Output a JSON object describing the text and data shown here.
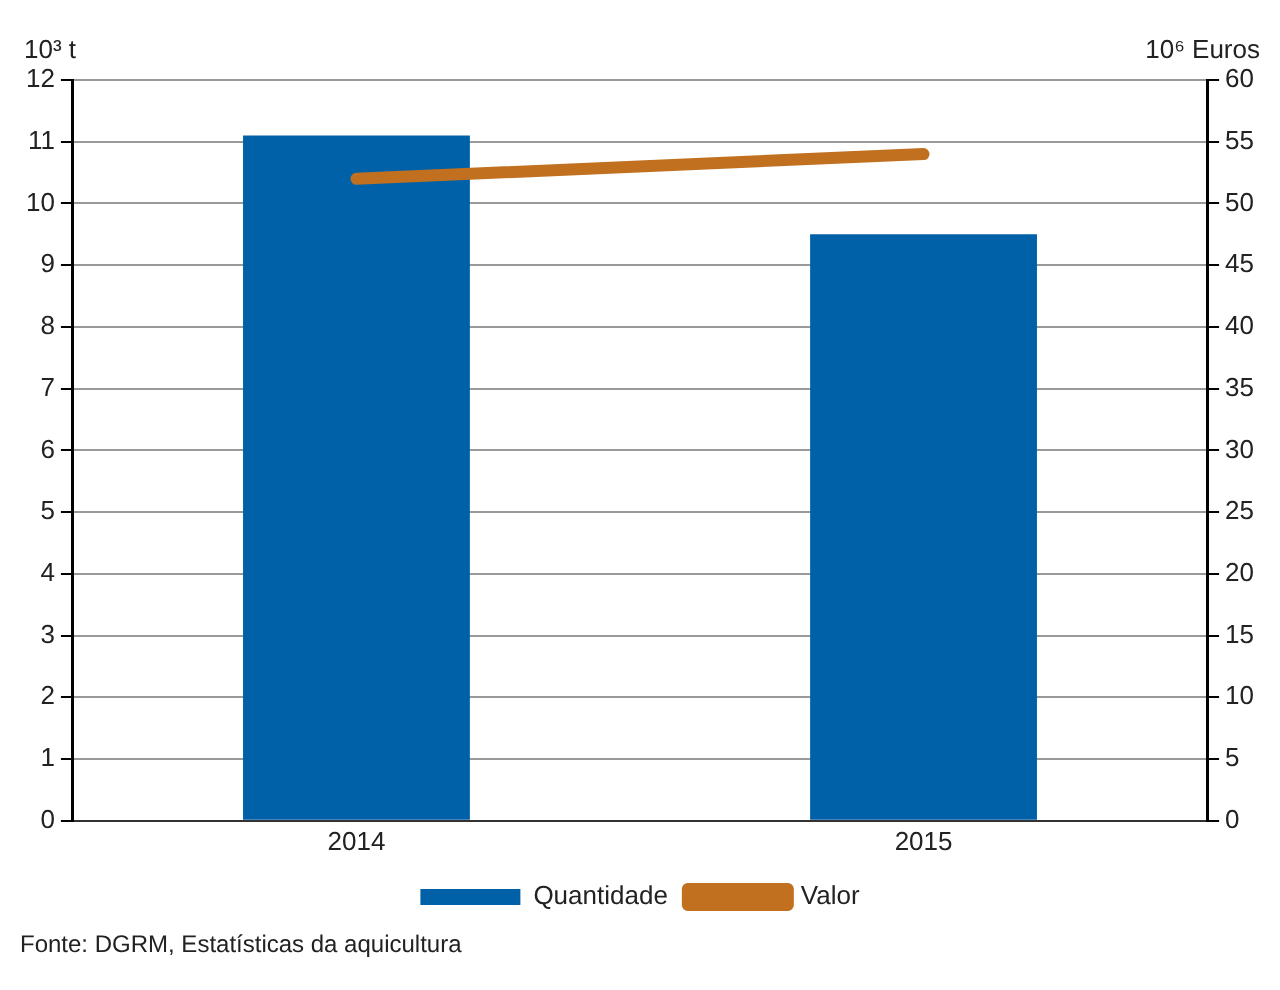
{
  "chart_data": {
    "type": "bar",
    "categories": [
      "2014",
      "2015"
    ],
    "ylabel": "10³ t",
    "y2label": "10⁶ Euros",
    "series": [
      {
        "name": "Quantidade",
        "color": "#0060a8",
        "values": [
          11.1,
          9.5
        ]
      },
      {
        "name": "Valor",
        "type": "line",
        "axis": "y2",
        "color": "#c0701e",
        "values": [
          52,
          54
        ]
      }
    ],
    "ylim": [
      0,
      12
    ],
    "yticks": [
      0,
      1,
      2,
      3,
      4,
      5,
      6,
      7,
      8,
      9,
      10,
      11,
      12
    ],
    "y2lim": [
      0,
      60
    ],
    "y2ticks": [
      0,
      5,
      10,
      15,
      20,
      25,
      30,
      35,
      40,
      45,
      50,
      55,
      60
    ],
    "grid": "y",
    "legend": "bottom",
    "marker": "none",
    "line_style": "solid",
    "annotations": [
      "Fonte: DGRM, Estatísticas da aquicultura"
    ]
  }
}
